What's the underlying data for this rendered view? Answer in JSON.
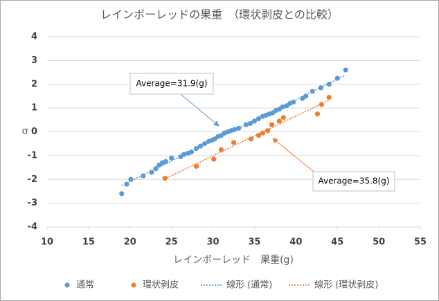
{
  "chart_data": {
    "type": "scatter",
    "title": "レインボーレッドの果重　（環状剥皮との比較）",
    "xlabel": "レインボーレッド　果重(g)",
    "ylabel": "σ",
    "xlim": [
      10,
      55
    ],
    "xticks": [
      10,
      15,
      20,
      25,
      30,
      35,
      40,
      45,
      50,
      55
    ],
    "ylim": [
      -4,
      4
    ],
    "yticks": [
      -4,
      -3,
      -2,
      -1,
      0,
      1,
      2,
      3,
      4
    ],
    "grid": true,
    "legend": "bottom",
    "annotations": [
      "Average=31.9(g)",
      "Average=35.8(g)"
    ],
    "series": [
      {
        "name": "通常",
        "color": "#5b9bd5",
        "trendline": {
          "name": "線形 (通常)",
          "kind": "linear"
        },
        "x": [
          19.0,
          19.6,
          20.1,
          21.6,
          22.6,
          23.1,
          23.5,
          23.9,
          24.3,
          25.0,
          26.1,
          26.5,
          27.0,
          27.4,
          28.0,
          28.5,
          29.0,
          29.5,
          29.9,
          30.2,
          30.6,
          31.0,
          31.4,
          31.8,
          32.2,
          32.6,
          33.1,
          34.0,
          34.5,
          35.0,
          35.5,
          36.0,
          36.4,
          36.8,
          37.2,
          37.6,
          38.0,
          38.4,
          38.9,
          39.3,
          39.7,
          40.8,
          41.2,
          42.0,
          43.0,
          44.0,
          45.0,
          46.0
        ],
        "values": [
          -2.6,
          -2.2,
          -2.0,
          -1.85,
          -1.7,
          -1.55,
          -1.4,
          -1.3,
          -1.25,
          -1.1,
          -1.05,
          -0.95,
          -0.9,
          -0.85,
          -0.7,
          -0.6,
          -0.5,
          -0.4,
          -0.35,
          -0.3,
          -0.2,
          -0.15,
          -0.05,
          0.0,
          0.05,
          0.1,
          0.15,
          0.3,
          0.35,
          0.45,
          0.55,
          0.65,
          0.7,
          0.75,
          0.8,
          0.9,
          0.95,
          1.05,
          1.1,
          1.2,
          1.25,
          1.4,
          1.5,
          1.7,
          1.85,
          2.0,
          2.25,
          2.6
        ]
      },
      {
        "name": "環状剥皮",
        "color": "#ed7d31",
        "trendline": {
          "name": "線形 (環状剥皮)",
          "kind": "linear"
        },
        "x": [
          24.2,
          28.0,
          30.1,
          31.0,
          32.5,
          34.6,
          35.5,
          36.0,
          36.6,
          37.1,
          38.0,
          38.5,
          42.6,
          43.1,
          44.0
        ],
        "values": [
          -1.95,
          -1.45,
          -1.15,
          -0.75,
          -0.45,
          -0.3,
          -0.15,
          -0.05,
          0.05,
          0.3,
          0.45,
          0.6,
          0.75,
          1.15,
          1.45
        ]
      }
    ]
  }
}
